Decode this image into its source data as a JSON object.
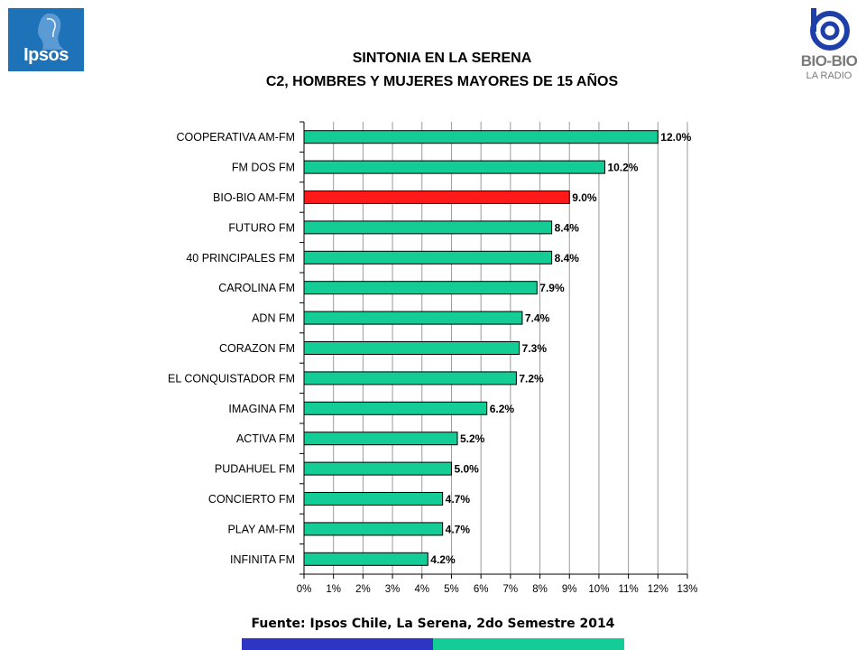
{
  "header": {
    "title_line1": "SINTONIA EN LA SERENA",
    "title_line2": "C2, HOMBRES Y MUJERES MAYORES DE 15 AÑOS"
  },
  "logos": {
    "ipsos_text": "Ipsos",
    "biobio_text": "BIO-BIO",
    "biobio_sub": "LA RADIO"
  },
  "footer": {
    "source": "Fuente: Ipsos Chile, La Serena, 2do Semestre 2014"
  },
  "colors": {
    "bar": "#14cc96",
    "highlight": "#ff1a1a",
    "band_blue": "#2e34c4",
    "band_green": "#14cc96"
  },
  "chart_data": {
    "type": "bar",
    "orientation": "horizontal",
    "categories": [
      "COOPERATIVA AM-FM",
      "FM DOS FM",
      "BIO-BIO AM-FM",
      "FUTURO FM",
      "40 PRINCIPALES FM",
      "CAROLINA FM",
      "ADN FM",
      "CORAZON FM",
      "EL CONQUISTADOR FM",
      "IMAGINA FM",
      "ACTIVA  FM",
      "PUDAHUEL FM",
      "CONCIERTO FM",
      "PLAY AM-FM",
      "INFINITA FM"
    ],
    "values": [
      12.0,
      10.2,
      9.0,
      8.4,
      8.4,
      7.9,
      7.4,
      7.3,
      7.2,
      6.2,
      5.2,
      5.0,
      4.7,
      4.7,
      4.2
    ],
    "data_labels": [
      "12.0%",
      "10.2%",
      "9.0%",
      "8.4%",
      "8.4%",
      "7.9%",
      "7.4%",
      "7.3%",
      "7.2%",
      "6.2%",
      "5.2%",
      "5.0%",
      "4.7%",
      "4.7%",
      "4.2%"
    ],
    "highlight_category": "BIO-BIO AM-FM",
    "xlim": [
      0,
      13
    ],
    "xticks": [
      "0%",
      "1%",
      "2%",
      "3%",
      "4%",
      "5%",
      "6%",
      "7%",
      "8%",
      "9%",
      "10%",
      "11%",
      "12%",
      "13%"
    ],
    "grid": "vertical"
  }
}
